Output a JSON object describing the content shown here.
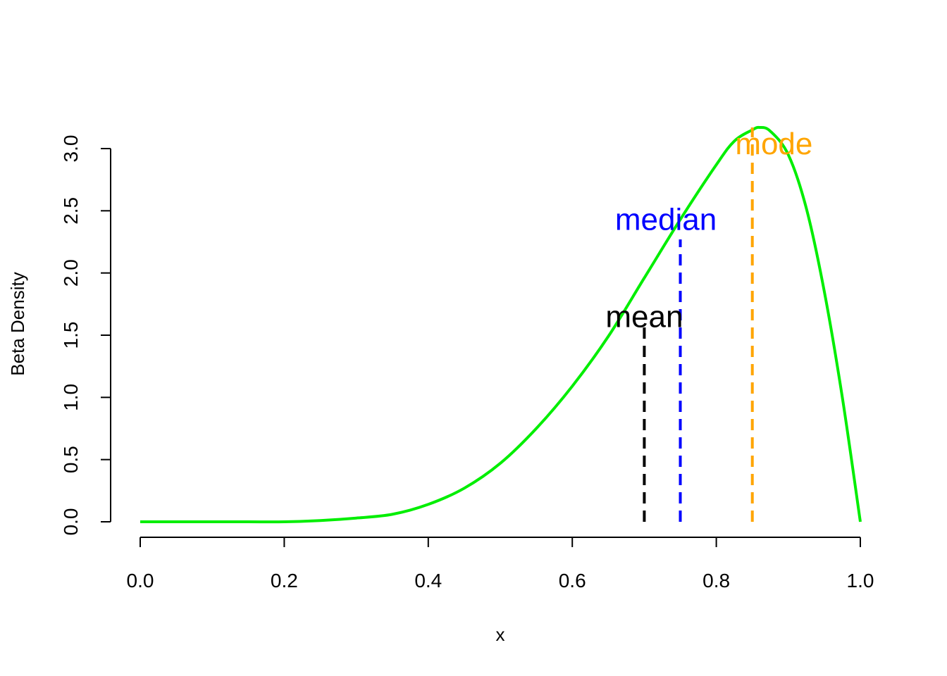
{
  "chart_data": {
    "type": "line",
    "title": "",
    "xlabel": "x",
    "ylabel": "Beta Density",
    "xlim": [
      0,
      1
    ],
    "ylim": [
      0,
      3.2
    ],
    "x_ticks": [
      "0.0",
      "0.2",
      "0.4",
      "0.6",
      "0.8",
      "1.0"
    ],
    "y_ticks": [
      "0.0",
      "0.5",
      "1.0",
      "1.5",
      "2.0",
      "2.5",
      "3.0"
    ],
    "grid": false,
    "series": [
      {
        "color": "#00ee00",
        "x": [
          0.0,
          0.05,
          0.1,
          0.15,
          0.2,
          0.25,
          0.3,
          0.35,
          0.4,
          0.45,
          0.5,
          0.55,
          0.6,
          0.65,
          0.7,
          0.75,
          0.8,
          0.825,
          0.85,
          0.86,
          0.875,
          0.9,
          0.925,
          0.95,
          0.975,
          1.0
        ],
        "y": [
          0.0,
          0.0,
          0.0,
          0.0,
          0.0,
          0.01,
          0.03,
          0.06,
          0.14,
          0.27,
          0.47,
          0.75,
          1.09,
          1.49,
          1.96,
          2.43,
          2.87,
          3.06,
          3.15,
          3.17,
          3.14,
          2.95,
          2.52,
          1.85,
          1.0,
          0.0
        ]
      }
    ],
    "markers": [
      {
        "label": "mean",
        "x": 0.7,
        "y_top": 1.6,
        "color": "#000000",
        "label_x": 0.7,
        "label_y": 1.65
      },
      {
        "label": "median",
        "x": 0.75,
        "y_top": 2.27,
        "color": "#0000ff",
        "label_x": 0.73,
        "label_y": 2.43
      },
      {
        "label": "mode",
        "x": 0.85,
        "y_top": 3.17,
        "color": "#ffa500",
        "label_x": 0.88,
        "label_y": 3.04
      }
    ]
  }
}
